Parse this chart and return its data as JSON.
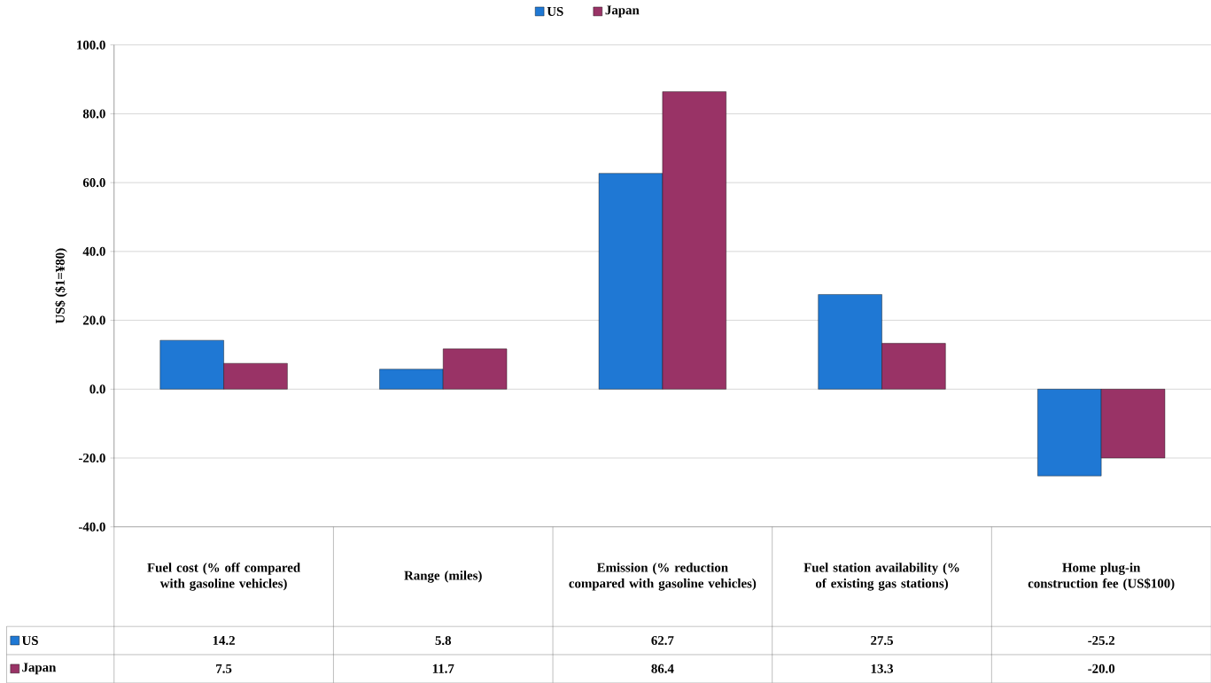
{
  "chart_data": {
    "type": "bar",
    "ylabel": "US$ ($1=¥80)",
    "categories": [
      "Fuel cost (% off compared with gasoline vehicles)",
      "Range (miles)",
      "Emission (% reduction compared with gasoline vehicles)",
      "Fuel station availability (% of existing gas stations)",
      "Home plug-in construction fee (US$100)"
    ],
    "series": [
      {
        "name": "US",
        "color": "#1f78d4",
        "values": [
          14.2,
          5.8,
          62.7,
          27.5,
          -25.2
        ],
        "value_labels": [
          "14.2",
          "5.8",
          "62.7",
          "27.5",
          "-25.2"
        ]
      },
      {
        "name": "Japan",
        "color": "#993366",
        "values": [
          7.5,
          11.7,
          86.4,
          13.3,
          -20.0
        ],
        "value_labels": [
          "7.5",
          "11.7",
          "86.4",
          "13.3",
          "-20.0"
        ]
      }
    ],
    "ylim": [
      -40,
      100
    ],
    "yticks": [
      {
        "value": -40,
        "label": "-40.0"
      },
      {
        "value": -20,
        "label": "-20.0"
      },
      {
        "value": 0,
        "label": "0.0"
      },
      {
        "value": 20,
        "label": "20.0"
      },
      {
        "value": 40,
        "label": "40.0"
      },
      {
        "value": 60,
        "label": "60.0"
      },
      {
        "value": 80,
        "label": "80.0"
      },
      {
        "value": 100,
        "label": "100.0"
      }
    ],
    "grid": "y",
    "legend": "top"
  }
}
